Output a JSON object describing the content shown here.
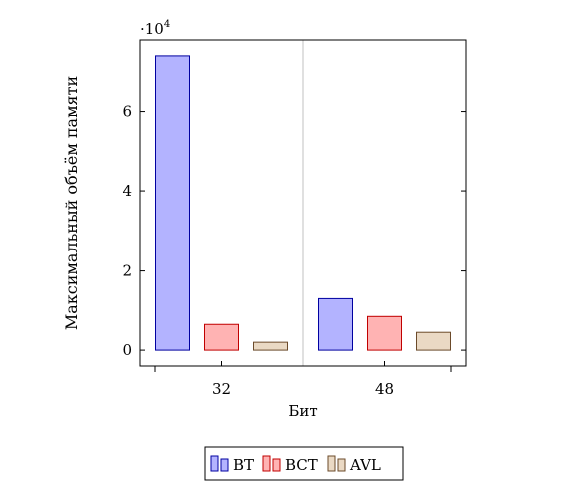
{
  "chart_data": {
    "type": "bar",
    "categories": [
      "32",
      "48"
    ],
    "series": [
      {
        "name": "BT",
        "values": [
          74000,
          13000
        ],
        "fill": "#b3b3ff",
        "stroke": "#0000a0"
      },
      {
        "name": "BCT",
        "values": [
          6500,
          8500
        ],
        "fill": "#ffb3b3",
        "stroke": "#c00000"
      },
      {
        "name": "AVL",
        "values": [
          2000,
          4500
        ],
        "fill": "#ead9c4",
        "stroke": "#6b4a2a"
      }
    ],
    "xlabel": "Бит",
    "ylabel": "Максимальный объём памяти",
    "y_ticks": [
      0,
      2,
      4,
      6
    ],
    "y_tick_labels": [
      "0",
      "2",
      "4",
      "6"
    ],
    "y_multiplier_label": "·10",
    "y_multiplier_exp": "4",
    "ylim": [
      -4000,
      78000
    ],
    "grid": "vertical",
    "legend_position": "bottom-center"
  }
}
